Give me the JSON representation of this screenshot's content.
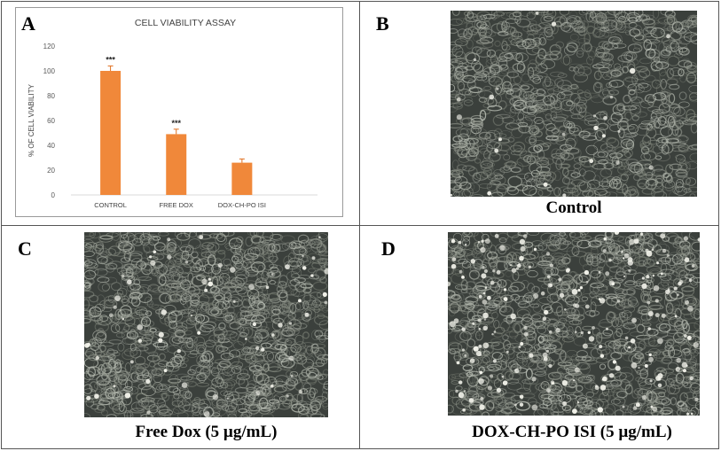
{
  "panels": {
    "a": {
      "letter": "A"
    },
    "b": {
      "letter": "B",
      "caption": "Control"
    },
    "c": {
      "letter": "C",
      "caption": "Free Dox (5 µg/mL)"
    },
    "d": {
      "letter": "D",
      "caption": "DOX-CH-PO ISI (5 µg/mL)"
    }
  },
  "chart_data": {
    "type": "bar",
    "title": "CELL VIABILITY ASSAY",
    "xlabel": "",
    "ylabel": "% OF CELL VIABILITY",
    "categories": [
      "CONTROL",
      "FREE DOX",
      "DOX-CH-PO ISI"
    ],
    "values": [
      100,
      49,
      26
    ],
    "errors": [
      4,
      4,
      3
    ],
    "annotations": [
      "***",
      "***",
      ""
    ],
    "ylim": [
      0,
      120
    ],
    "yticks": [
      0,
      20,
      40,
      60,
      80,
      100,
      120
    ],
    "grid": false,
    "legend": "none",
    "bar_color": "#f0883a"
  },
  "colors": {
    "bar": "#f0883a",
    "border": "#555555",
    "micrograph_bg": "#3f4440"
  }
}
